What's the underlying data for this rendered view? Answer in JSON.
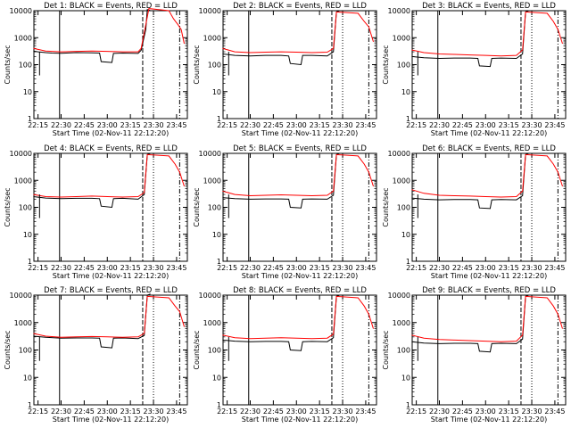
{
  "figure": {
    "xaxis_title": "Start Time (02-Nov-11 22:12:20)",
    "yaxis_title": "Counts/sec"
  },
  "colors": {
    "events": "#000000",
    "lld": "#ff0000",
    "axes": "#000000",
    "background": "#ffffff"
  },
  "chart_data": [
    {
      "type": "line",
      "title": "Det 1: BLACK = Events, RED = LLD",
      "xlabel": "Start Time (02-Nov-11 22:12:20)",
      "ylabel": "Counts/sec",
      "x_ticks": [
        "22:15",
        "22:30",
        "22:45",
        "23:00",
        "23:15",
        "23:30",
        "23:45"
      ],
      "y_ticks": [
        "1",
        "10",
        "100",
        "1000",
        "10000"
      ],
      "y_scale": "log",
      "ylim": [
        1,
        10000
      ],
      "xlim": [
        "22:12:20",
        "23:52:00"
      ],
      "series": [
        {
          "name": "Events",
          "color": "#000000",
          "x": [
            "22:12",
            "22:15",
            "22:20",
            "22:24",
            "22:30",
            "22:40",
            "22:50",
            "22:55",
            "22:56",
            "23:03",
            "23:04",
            "23:10",
            "23:20",
            "23:22",
            "23:25",
            "23:26",
            "23:28"
          ],
          "values": [
            320,
            300,
            280,
            270,
            265,
            280,
            275,
            270,
            130,
            120,
            260,
            270,
            260,
            340,
            2000,
            11000,
            10000
          ]
        },
        {
          "name": "LLD",
          "color": "#ff0000",
          "x": [
            "22:12",
            "22:20",
            "22:30",
            "22:40",
            "22:50",
            "23:00",
            "23:10",
            "23:20",
            "23:22",
            "23:25",
            "23:27",
            "23:40",
            "23:43",
            "23:46",
            "23:48",
            "23:50"
          ],
          "values": [
            400,
            320,
            300,
            310,
            320,
            310,
            300,
            300,
            400,
            3000,
            12000,
            10000,
            5000,
            3000,
            2000,
            600
          ]
        }
      ],
      "vertical_markers": [
        "22:29 solid",
        "23:23 dashed",
        "23:29 dotted",
        "23:47 dash-dot"
      ]
    },
    {
      "type": "line",
      "title": "Det 2: BLACK = Events, RED = LLD",
      "xlabel": "Start Time (02-Nov-11 22:12:20)",
      "ylabel": "Counts/sec",
      "x_ticks": [
        "22:15",
        "22:30",
        "22:45",
        "23:00",
        "23:15",
        "23:30",
        "23:45"
      ],
      "y_ticks": [
        "1",
        "10",
        "100",
        "1000",
        "10000"
      ],
      "y_scale": "log",
      "ylim": [
        1,
        10000
      ],
      "series": [
        {
          "name": "Events",
          "color": "#000000",
          "x": [
            "22:12",
            "22:20",
            "22:30",
            "22:40",
            "22:50",
            "22:55",
            "22:56",
            "23:03",
            "23:04",
            "23:10",
            "23:20",
            "23:24",
            "23:26",
            "23:28"
          ],
          "values": [
            250,
            220,
            210,
            220,
            220,
            210,
            110,
            100,
            220,
            220,
            210,
            300,
            9000,
            10000
          ]
        },
        {
          "name": "LLD",
          "color": "#ff0000",
          "x": [
            "22:12",
            "22:20",
            "22:30",
            "22:40",
            "22:50",
            "23:00",
            "23:10",
            "23:20",
            "23:24",
            "23:26",
            "23:40",
            "23:44",
            "23:47",
            "23:50"
          ],
          "values": [
            400,
            300,
            280,
            290,
            300,
            290,
            280,
            290,
            400,
            9000,
            8000,
            4000,
            2500,
            700
          ]
        }
      ]
    },
    {
      "type": "line",
      "title": "Det 3: BLACK = Events, RED = LLD",
      "xlabel": "Start Time (02-Nov-11 22:12:20)",
      "ylabel": "Counts/sec",
      "x_ticks": [
        "22:15",
        "22:30",
        "22:45",
        "23:00",
        "23:15",
        "23:30",
        "23:45"
      ],
      "y_ticks": [
        "1",
        "10",
        "100",
        "1000",
        "10000"
      ],
      "y_scale": "log",
      "ylim": [
        1,
        10000
      ],
      "series": [
        {
          "name": "Events",
          "color": "#000000",
          "x": [
            "22:12",
            "22:20",
            "22:30",
            "22:40",
            "22:50",
            "22:55",
            "22:56",
            "23:03",
            "23:04",
            "23:10",
            "23:20",
            "23:24",
            "23:26",
            "23:28"
          ],
          "values": [
            200,
            180,
            170,
            175,
            175,
            170,
            90,
            85,
            170,
            175,
            170,
            250,
            9000,
            10000
          ]
        },
        {
          "name": "LLD",
          "color": "#ff0000",
          "x": [
            "22:12",
            "22:20",
            "22:30",
            "22:40",
            "22:50",
            "23:00",
            "23:10",
            "23:20",
            "23:24",
            "23:26",
            "23:40",
            "23:44",
            "23:47",
            "23:50"
          ],
          "values": [
            350,
            280,
            250,
            240,
            230,
            220,
            210,
            220,
            350,
            9000,
            8000,
            4000,
            2000,
            600
          ]
        }
      ]
    },
    {
      "type": "line",
      "title": "Det 4: BLACK = Events, RED = LLD",
      "xlabel": "Start Time (02-Nov-11 22:12:20)",
      "ylabel": "Counts/sec",
      "x_ticks": [
        "22:15",
        "22:30",
        "22:45",
        "23:00",
        "23:15",
        "23:30",
        "23:45"
      ],
      "y_ticks": [
        "1",
        "10",
        "100",
        "1000",
        "10000"
      ],
      "y_scale": "log",
      "ylim": [
        1,
        10000
      ],
      "series": [
        {
          "name": "Events",
          "color": "#000000",
          "x": [
            "22:12",
            "22:20",
            "22:30",
            "22:40",
            "22:50",
            "22:55",
            "22:56",
            "23:03",
            "23:04",
            "23:10",
            "23:20",
            "23:24",
            "23:26",
            "23:28"
          ],
          "values": [
            250,
            220,
            210,
            215,
            215,
            210,
            110,
            100,
            210,
            215,
            200,
            300,
            9000,
            10000
          ]
        },
        {
          "name": "LLD",
          "color": "#ff0000",
          "x": [
            "22:12",
            "22:20",
            "22:30",
            "22:40",
            "22:50",
            "23:00",
            "23:10",
            "23:20",
            "23:24",
            "23:26",
            "23:40",
            "23:44",
            "23:47",
            "23:50"
          ],
          "values": [
            300,
            250,
            240,
            250,
            260,
            250,
            240,
            250,
            350,
            9000,
            8000,
            4000,
            2000,
            600
          ]
        }
      ]
    },
    {
      "type": "line",
      "title": "Det 5: BLACK = Events, RED = LLD",
      "xlabel": "Start Time (02-Nov-11 22:12:20)",
      "ylabel": "Counts/sec",
      "x_ticks": [
        "22:15",
        "22:30",
        "22:45",
        "23:00",
        "23:15",
        "23:30",
        "23:45"
      ],
      "y_ticks": [
        "1",
        "10",
        "100",
        "1000",
        "10000"
      ],
      "y_scale": "log",
      "ylim": [
        1,
        10000
      ],
      "series": [
        {
          "name": "Events",
          "color": "#000000",
          "x": [
            "22:12",
            "22:20",
            "22:30",
            "22:40",
            "22:50",
            "22:55",
            "22:56",
            "23:03",
            "23:04",
            "23:10",
            "23:20",
            "23:24",
            "23:26",
            "23:28"
          ],
          "values": [
            230,
            210,
            200,
            205,
            205,
            200,
            100,
            95,
            200,
            205,
            200,
            280,
            9000,
            10000
          ]
        },
        {
          "name": "LLD",
          "color": "#ff0000",
          "x": [
            "22:12",
            "22:20",
            "22:30",
            "22:40",
            "22:50",
            "23:00",
            "23:10",
            "23:20",
            "23:24",
            "23:26",
            "23:40",
            "23:44",
            "23:47",
            "23:50"
          ],
          "values": [
            400,
            300,
            270,
            280,
            290,
            280,
            270,
            280,
            400,
            9000,
            8000,
            4000,
            2000,
            600
          ]
        }
      ]
    },
    {
      "type": "line",
      "title": "Det 6: BLACK = Events, RED = LLD",
      "xlabel": "Start Time (02-Nov-11 22:12:20)",
      "ylabel": "Counts/sec",
      "x_ticks": [
        "22:15",
        "22:30",
        "22:45",
        "23:00",
        "23:15",
        "23:30",
        "23:45"
      ],
      "y_ticks": [
        "1",
        "10",
        "100",
        "1000",
        "10000"
      ],
      "y_scale": "log",
      "ylim": [
        1,
        10000
      ],
      "series": [
        {
          "name": "Events",
          "color": "#000000",
          "x": [
            "22:12",
            "22:20",
            "22:30",
            "22:40",
            "22:50",
            "22:55",
            "22:56",
            "23:03",
            "23:04",
            "23:10",
            "23:20",
            "23:24",
            "23:26",
            "23:28"
          ],
          "values": [
            220,
            200,
            190,
            195,
            195,
            190,
            95,
            90,
            190,
            195,
            190,
            270,
            9000,
            10000
          ]
        },
        {
          "name": "LLD",
          "color": "#ff0000",
          "x": [
            "22:12",
            "22:20",
            "22:30",
            "22:40",
            "22:50",
            "23:00",
            "23:10",
            "23:20",
            "23:24",
            "23:26",
            "23:40",
            "23:44",
            "23:47",
            "23:50"
          ],
          "values": [
            450,
            330,
            280,
            270,
            260,
            250,
            240,
            250,
            400,
            9000,
            8000,
            4000,
            2000,
            600
          ]
        }
      ]
    },
    {
      "type": "line",
      "title": "Det 7: BLACK = Events, RED = LLD",
      "xlabel": "Start Time (02-Nov-11 22:12:20)",
      "ylabel": "Counts/sec",
      "x_ticks": [
        "22:15",
        "22:30",
        "22:45",
        "23:00",
        "23:15",
        "23:30",
        "23:45"
      ],
      "y_ticks": [
        "1",
        "10",
        "100",
        "1000",
        "10000"
      ],
      "y_scale": "log",
      "ylim": [
        1,
        10000
      ],
      "series": [
        {
          "name": "Events",
          "color": "#000000",
          "x": [
            "22:12",
            "22:20",
            "22:30",
            "22:40",
            "22:50",
            "22:55",
            "22:56",
            "23:03",
            "23:04",
            "23:10",
            "23:20",
            "23:24",
            "23:26",
            "23:28"
          ],
          "values": [
            320,
            290,
            270,
            275,
            275,
            270,
            130,
            120,
            270,
            275,
            260,
            340,
            10000,
            11000
          ]
        },
        {
          "name": "LLD",
          "color": "#ff0000",
          "x": [
            "22:12",
            "22:20",
            "22:30",
            "22:40",
            "22:50",
            "23:00",
            "23:10",
            "23:20",
            "23:24",
            "23:26",
            "23:40",
            "23:44",
            "23:47",
            "23:50"
          ],
          "values": [
            400,
            320,
            290,
            300,
            310,
            300,
            290,
            300,
            400,
            9000,
            8000,
            4000,
            2500,
            700
          ]
        }
      ]
    },
    {
      "type": "line",
      "title": "Det 8: BLACK = Events, RED = LLD",
      "xlabel": "Start Time (02-Nov-11 22:12:20)",
      "ylabel": "Counts/sec",
      "x_ticks": [
        "22:15",
        "22:30",
        "22:45",
        "23:00",
        "23:15",
        "23:30",
        "23:45"
      ],
      "y_ticks": [
        "1",
        "10",
        "100",
        "1000",
        "10000"
      ],
      "y_scale": "log",
      "ylim": [
        1,
        10000
      ],
      "series": [
        {
          "name": "Events",
          "color": "#000000",
          "x": [
            "22:12",
            "22:20",
            "22:30",
            "22:40",
            "22:50",
            "22:55",
            "22:56",
            "23:03",
            "23:04",
            "23:10",
            "23:20",
            "23:24",
            "23:26",
            "23:28"
          ],
          "values": [
            230,
            210,
            200,
            205,
            205,
            200,
            100,
            95,
            200,
            205,
            200,
            280,
            9000,
            10000
          ]
        },
        {
          "name": "LLD",
          "color": "#ff0000",
          "x": [
            "22:12",
            "22:20",
            "22:30",
            "22:40",
            "22:50",
            "23:00",
            "23:10",
            "23:20",
            "23:24",
            "23:26",
            "23:40",
            "23:44",
            "23:47",
            "23:50"
          ],
          "values": [
            350,
            280,
            260,
            270,
            280,
            270,
            260,
            270,
            380,
            9000,
            8000,
            4000,
            2000,
            600
          ]
        }
      ]
    },
    {
      "type": "line",
      "title": "Det 9: BLACK = Events, RED = LLD",
      "xlabel": "Start Time (02-Nov-11 22:12:20)",
      "ylabel": "Counts/sec",
      "x_ticks": [
        "22:15",
        "22:30",
        "22:45",
        "23:00",
        "23:15",
        "23:30",
        "23:45"
      ],
      "y_ticks": [
        "1",
        "10",
        "100",
        "1000",
        "10000"
      ],
      "y_scale": "log",
      "ylim": [
        1,
        10000
      ],
      "series": [
        {
          "name": "Events",
          "color": "#000000",
          "x": [
            "22:12",
            "22:20",
            "22:30",
            "22:40",
            "22:50",
            "22:55",
            "22:56",
            "23:03",
            "23:04",
            "23:10",
            "23:20",
            "23:24",
            "23:26",
            "23:28"
          ],
          "values": [
            200,
            180,
            170,
            175,
            175,
            170,
            90,
            85,
            170,
            175,
            170,
            250,
            9000,
            10000
          ]
        },
        {
          "name": "LLD",
          "color": "#ff0000",
          "x": [
            "22:12",
            "22:20",
            "22:30",
            "22:40",
            "22:50",
            "23:00",
            "23:10",
            "23:20",
            "23:24",
            "23:26",
            "23:40",
            "23:44",
            "23:47",
            "23:50"
          ],
          "values": [
            350,
            270,
            240,
            230,
            220,
            210,
            200,
            210,
            350,
            9000,
            8000,
            4000,
            2000,
            600
          ]
        }
      ]
    }
  ]
}
